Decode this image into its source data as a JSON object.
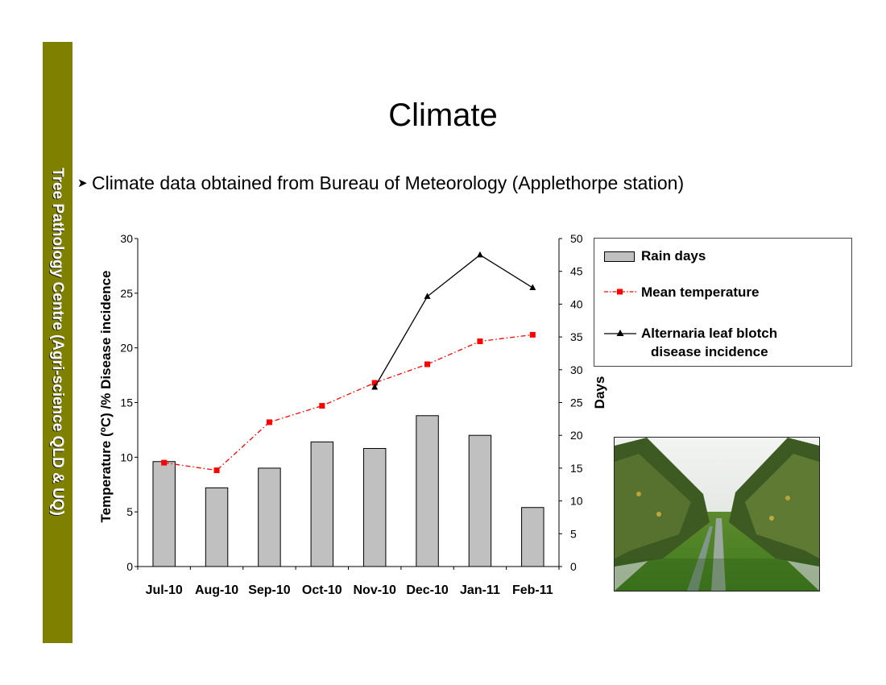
{
  "slide": {
    "sidebar_text": "Tree Pathology Centre (Agri-science QLD & UQ)",
    "title": "Climate",
    "bullet": "Climate data obtained from Bureau of Meteorology (Applethorpe station)",
    "bullet_icon": "arrowhead-bullet-icon",
    "sidebar_color": "#808000"
  },
  "chart_data": {
    "type": "bar",
    "categories": [
      "Jul-10",
      "Aug-10",
      "Sep-10",
      "Oct-10",
      "Nov-10",
      "Dec-10",
      "Jan-11",
      "Feb-11"
    ],
    "ylabel": "Temperature (ºC) /% Disease incidence",
    "y2label": "Days",
    "ylim": [
      0,
      30
    ],
    "y2lim": [
      0,
      50
    ],
    "yticks": [
      0,
      5,
      10,
      15,
      20,
      25,
      30
    ],
    "y2ticks": [
      0,
      5,
      10,
      15,
      20,
      25,
      30,
      35,
      40,
      45,
      50
    ],
    "grid": false,
    "legend_position": "top-right",
    "series": [
      {
        "name": "Rain days",
        "kind": "bar",
        "axis": "right",
        "color": "#c0c0c0",
        "values": [
          16,
          12,
          15,
          19,
          18,
          23,
          20,
          9
        ]
      },
      {
        "name": "Mean temperature",
        "kind": "line",
        "axis": "left",
        "style": "dash-dot",
        "marker": "square",
        "color": "#ff0000",
        "values": [
          9.5,
          8.8,
          13.2,
          14.7,
          16.8,
          18.5,
          20.6,
          21.2
        ]
      },
      {
        "name": "Alternaria leaf blotch disease incidence",
        "kind": "line",
        "axis": "left",
        "style": "solid",
        "marker": "triangle",
        "color": "#000000",
        "values": [
          null,
          null,
          null,
          null,
          16.4,
          24.7,
          28.5,
          25.5
        ]
      }
    ]
  },
  "legend": {
    "items": [
      {
        "label": "Rain days",
        "symbol": "bar-swatch"
      },
      {
        "label": "Mean temperature",
        "symbol": "red-dashdot-square-line"
      },
      {
        "label_line1": "Alternaria leaf blotch",
        "label_line2": "disease incidence",
        "symbol": "black-triangle-line"
      }
    ]
  },
  "photo": {
    "subject": "apple-orchard-photo"
  }
}
